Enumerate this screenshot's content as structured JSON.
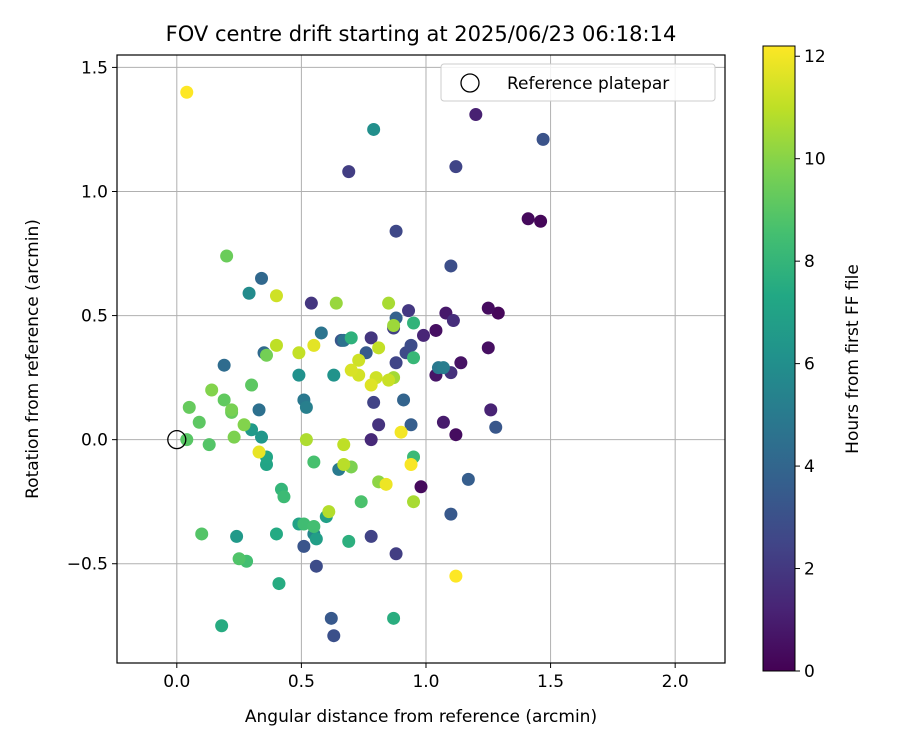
{
  "chart_data": {
    "type": "scatter",
    "title": "FOV centre drift starting at 2025/06/23 06:18:14",
    "xlabel": "Angular distance from reference (arcmin)",
    "ylabel": "Rotation from reference (arcmin)",
    "xlim": [
      -0.24,
      2.2
    ],
    "ylim": [
      -0.9,
      1.55
    ],
    "xticks": [
      0.0,
      0.5,
      1.0,
      1.5,
      2.0
    ],
    "xtick_labels": [
      "0.0",
      "0.5",
      "1.0",
      "1.5",
      "2.0"
    ],
    "yticks": [
      -0.5,
      0.0,
      0.5,
      1.0,
      1.5
    ],
    "ytick_labels": [
      "−0.5",
      "0.0",
      "0.5",
      "1.0",
      "1.5"
    ],
    "grid": true,
    "legend": {
      "position": "top-right",
      "entries": [
        {
          "label": "Reference platepar",
          "marker": "open-circle"
        }
      ]
    },
    "reference_point": {
      "x": 0.0,
      "y": 0.0
    },
    "colorbar": {
      "label": "Hours from first FF file",
      "colormap": "viridis",
      "min": 0,
      "max": 12.2,
      "ticks": [
        0,
        2,
        4,
        6,
        8,
        10,
        12
      ],
      "tick_labels": [
        "0",
        "2",
        "4",
        "6",
        "8",
        "10",
        "12"
      ]
    },
    "points": [
      {
        "x": 1.29,
        "y": 0.51,
        "h": 0.2
      },
      {
        "x": 1.25,
        "y": 0.53,
        "h": 0.4
      },
      {
        "x": 1.25,
        "y": 0.37,
        "h": 0.5
      },
      {
        "x": 1.41,
        "y": 0.89,
        "h": 0.3
      },
      {
        "x": 1.46,
        "y": 0.88,
        "h": 0.2
      },
      {
        "x": 1.14,
        "y": 0.31,
        "h": 0.6
      },
      {
        "x": 1.12,
        "y": 0.02,
        "h": 0.4
      },
      {
        "x": 0.98,
        "y": -0.19,
        "h": 0.3
      },
      {
        "x": 1.08,
        "y": 0.51,
        "h": 0.8
      },
      {
        "x": 1.04,
        "y": 0.44,
        "h": 0.5
      },
      {
        "x": 1.04,
        "y": 0.26,
        "h": 0.7
      },
      {
        "x": 1.07,
        "y": 0.07,
        "h": 0.9
      },
      {
        "x": 1.2,
        "y": 1.31,
        "h": 1.1
      },
      {
        "x": 1.26,
        "y": 0.12,
        "h": 1.2
      },
      {
        "x": 0.99,
        "y": 0.42,
        "h": 1.3
      },
      {
        "x": 1.11,
        "y": 0.48,
        "h": 1.6
      },
      {
        "x": 1.1,
        "y": 0.27,
        "h": 1.7
      },
      {
        "x": 0.78,
        "y": 0.0,
        "h": 1.4
      },
      {
        "x": 0.81,
        "y": 0.06,
        "h": 1.8
      },
      {
        "x": 0.88,
        "y": -0.46,
        "h": 2.2
      },
      {
        "x": 0.78,
        "y": -0.39,
        "h": 2.4
      },
      {
        "x": 0.78,
        "y": 0.41,
        "h": 1.9
      },
      {
        "x": 0.93,
        "y": 0.52,
        "h": 2.0
      },
      {
        "x": 0.87,
        "y": 0.45,
        "h": 2.3
      },
      {
        "x": 0.54,
        "y": 0.55,
        "h": 1.9
      },
      {
        "x": 0.69,
        "y": 1.08,
        "h": 2.2
      },
      {
        "x": 0.88,
        "y": 0.84,
        "h": 2.6
      },
      {
        "x": 0.79,
        "y": 0.15,
        "h": 2.4
      },
      {
        "x": 0.88,
        "y": 0.31,
        "h": 2.5
      },
      {
        "x": 0.92,
        "y": 0.35,
        "h": 2.7
      },
      {
        "x": 0.94,
        "y": 0.38,
        "h": 2.8
      },
      {
        "x": 1.1,
        "y": 0.7,
        "h": 2.9
      },
      {
        "x": 1.12,
        "y": 1.1,
        "h": 2.5
      },
      {
        "x": 1.47,
        "y": 1.21,
        "h": 3.1
      },
      {
        "x": 1.28,
        "y": 0.05,
        "h": 3.3
      },
      {
        "x": 1.1,
        "y": -0.3,
        "h": 3.4
      },
      {
        "x": 1.17,
        "y": -0.16,
        "h": 3.6
      },
      {
        "x": 0.56,
        "y": -0.51,
        "h": 2.8
      },
      {
        "x": 0.62,
        "y": -0.72,
        "h": 3.4
      },
      {
        "x": 0.63,
        "y": -0.79,
        "h": 3.0
      },
      {
        "x": 0.51,
        "y": -0.43,
        "h": 3.2
      },
      {
        "x": 0.66,
        "y": 0.4,
        "h": 3.3
      },
      {
        "x": 0.76,
        "y": 0.35,
        "h": 3.5
      },
      {
        "x": 0.94,
        "y": 0.06,
        "h": 3.6
      },
      {
        "x": 0.91,
        "y": 0.16,
        "h": 3.9
      },
      {
        "x": 0.88,
        "y": 0.49,
        "h": 3.8
      },
      {
        "x": 0.34,
        "y": 0.65,
        "h": 4.1
      },
      {
        "x": 0.19,
        "y": 0.3,
        "h": 4.3
      },
      {
        "x": 0.33,
        "y": 0.12,
        "h": 4.5
      },
      {
        "x": 0.35,
        "y": 0.35,
        "h": 4.2
      },
      {
        "x": 0.58,
        "y": 0.43,
        "h": 4.7
      },
      {
        "x": 1.05,
        "y": 0.29,
        "h": 4.9
      },
      {
        "x": 1.07,
        "y": 0.29,
        "h": 5.1
      },
      {
        "x": 0.67,
        "y": 0.4,
        "h": 4.6
      },
      {
        "x": 0.51,
        "y": 0.16,
        "h": 4.9
      },
      {
        "x": 0.52,
        "y": 0.13,
        "h": 5.2
      },
      {
        "x": 0.65,
        "y": -0.12,
        "h": 5.0
      },
      {
        "x": 0.55,
        "y": -0.38,
        "h": 5.5
      },
      {
        "x": 0.29,
        "y": 0.59,
        "h": 5.8
      },
      {
        "x": 0.79,
        "y": 1.25,
        "h": 6.0
      },
      {
        "x": 0.49,
        "y": 0.26,
        "h": 6.1
      },
      {
        "x": 0.63,
        "y": 0.26,
        "h": 6.2
      },
      {
        "x": 0.34,
        "y": 0.01,
        "h": 6.4
      },
      {
        "x": 0.3,
        "y": 0.04,
        "h": 6.6
      },
      {
        "x": 0.24,
        "y": -0.39,
        "h": 6.5
      },
      {
        "x": 0.56,
        "y": -0.4,
        "h": 6.8
      },
      {
        "x": 0.6,
        "y": -0.31,
        "h": 6.9
      },
      {
        "x": 0.49,
        "y": -0.34,
        "h": 7.0
      },
      {
        "x": 0.36,
        "y": -0.1,
        "h": 7.1
      },
      {
        "x": 0.36,
        "y": -0.07,
        "h": 7.2
      },
      {
        "x": 0.4,
        "y": -0.38,
        "h": 7.4
      },
      {
        "x": 0.41,
        "y": -0.58,
        "h": 7.5
      },
      {
        "x": 0.18,
        "y": -0.75,
        "h": 7.5
      },
      {
        "x": 0.87,
        "y": -0.72,
        "h": 7.6
      },
      {
        "x": 0.69,
        "y": -0.41,
        "h": 7.7
      },
      {
        "x": 0.7,
        "y": 0.41,
        "h": 7.8
      },
      {
        "x": 0.95,
        "y": 0.47,
        "h": 7.9
      },
      {
        "x": 0.95,
        "y": 0.33,
        "h": 8.1
      },
      {
        "x": 0.95,
        "y": -0.07,
        "h": 8.2
      },
      {
        "x": 0.42,
        "y": -0.2,
        "h": 8.0
      },
      {
        "x": 0.43,
        "y": -0.23,
        "h": 8.3
      },
      {
        "x": 0.51,
        "y": -0.34,
        "h": 8.4
      },
      {
        "x": 0.55,
        "y": -0.35,
        "h": 8.5
      },
      {
        "x": 0.55,
        "y": -0.09,
        "h": 8.6
      },
      {
        "x": 0.74,
        "y": -0.25,
        "h": 8.7
      },
      {
        "x": 0.28,
        "y": -0.49,
        "h": 8.5
      },
      {
        "x": 0.25,
        "y": -0.48,
        "h": 8.8
      },
      {
        "x": 0.1,
        "y": -0.38,
        "h": 8.9
      },
      {
        "x": 0.13,
        "y": -0.02,
        "h": 8.9
      },
      {
        "x": 0.04,
        "y": 0.0,
        "h": 9.0
      },
      {
        "x": 0.09,
        "y": 0.07,
        "h": 9.1
      },
      {
        "x": 0.19,
        "y": 0.16,
        "h": 9.2
      },
      {
        "x": 0.22,
        "y": 0.11,
        "h": 9.3
      },
      {
        "x": 0.3,
        "y": 0.22,
        "h": 9.1
      },
      {
        "x": 0.05,
        "y": 0.13,
        "h": 9.3
      },
      {
        "x": 0.2,
        "y": 0.74,
        "h": 9.4
      },
      {
        "x": 0.36,
        "y": 0.34,
        "h": 9.6
      },
      {
        "x": 0.22,
        "y": 0.12,
        "h": 9.7
      },
      {
        "x": 0.23,
        "y": 0.01,
        "h": 9.8
      },
      {
        "x": 0.27,
        "y": 0.06,
        "h": 9.9
      },
      {
        "x": 0.14,
        "y": 0.2,
        "h": 9.9
      },
      {
        "x": 0.7,
        "y": -0.11,
        "h": 9.8
      },
      {
        "x": 0.81,
        "y": -0.17,
        "h": 10.1
      },
      {
        "x": 0.64,
        "y": 0.55,
        "h": 10.3
      },
      {
        "x": 0.85,
        "y": 0.55,
        "h": 10.6
      },
      {
        "x": 0.87,
        "y": 0.46,
        "h": 10.4
      },
      {
        "x": 0.87,
        "y": 0.25,
        "h": 10.5
      },
      {
        "x": 0.95,
        "y": -0.25,
        "h": 10.6
      },
      {
        "x": 0.61,
        "y": -0.29,
        "h": 10.8
      },
      {
        "x": 0.67,
        "y": -0.1,
        "h": 10.9
      },
      {
        "x": 0.67,
        "y": -0.02,
        "h": 11.0
      },
      {
        "x": 0.81,
        "y": 0.37,
        "h": 11.1
      },
      {
        "x": 0.85,
        "y": 0.24,
        "h": 11.2
      },
      {
        "x": 0.73,
        "y": 0.32,
        "h": 11.3
      },
      {
        "x": 0.73,
        "y": 0.26,
        "h": 11.4
      },
      {
        "x": 0.8,
        "y": 0.25,
        "h": 11.3
      },
      {
        "x": 0.7,
        "y": 0.28,
        "h": 11.5
      },
      {
        "x": 0.78,
        "y": 0.22,
        "h": 11.6
      },
      {
        "x": 0.52,
        "y": 0.0,
        "h": 10.7
      },
      {
        "x": 0.4,
        "y": 0.58,
        "h": 11.3
      },
      {
        "x": 0.4,
        "y": 0.38,
        "h": 11.0
      },
      {
        "x": 0.49,
        "y": 0.35,
        "h": 11.1
      },
      {
        "x": 0.55,
        "y": 0.38,
        "h": 11.7
      },
      {
        "x": 0.33,
        "y": -0.05,
        "h": 11.8
      },
      {
        "x": 0.84,
        "y": -0.18,
        "h": 11.9
      },
      {
        "x": 0.9,
        "y": 0.03,
        "h": 12.0
      },
      {
        "x": 0.94,
        "y": -0.1,
        "h": 12.1
      },
      {
        "x": 1.12,
        "y": -0.55,
        "h": 12.2
      },
      {
        "x": 0.04,
        "y": 1.4,
        "h": 12.2
      }
    ]
  }
}
